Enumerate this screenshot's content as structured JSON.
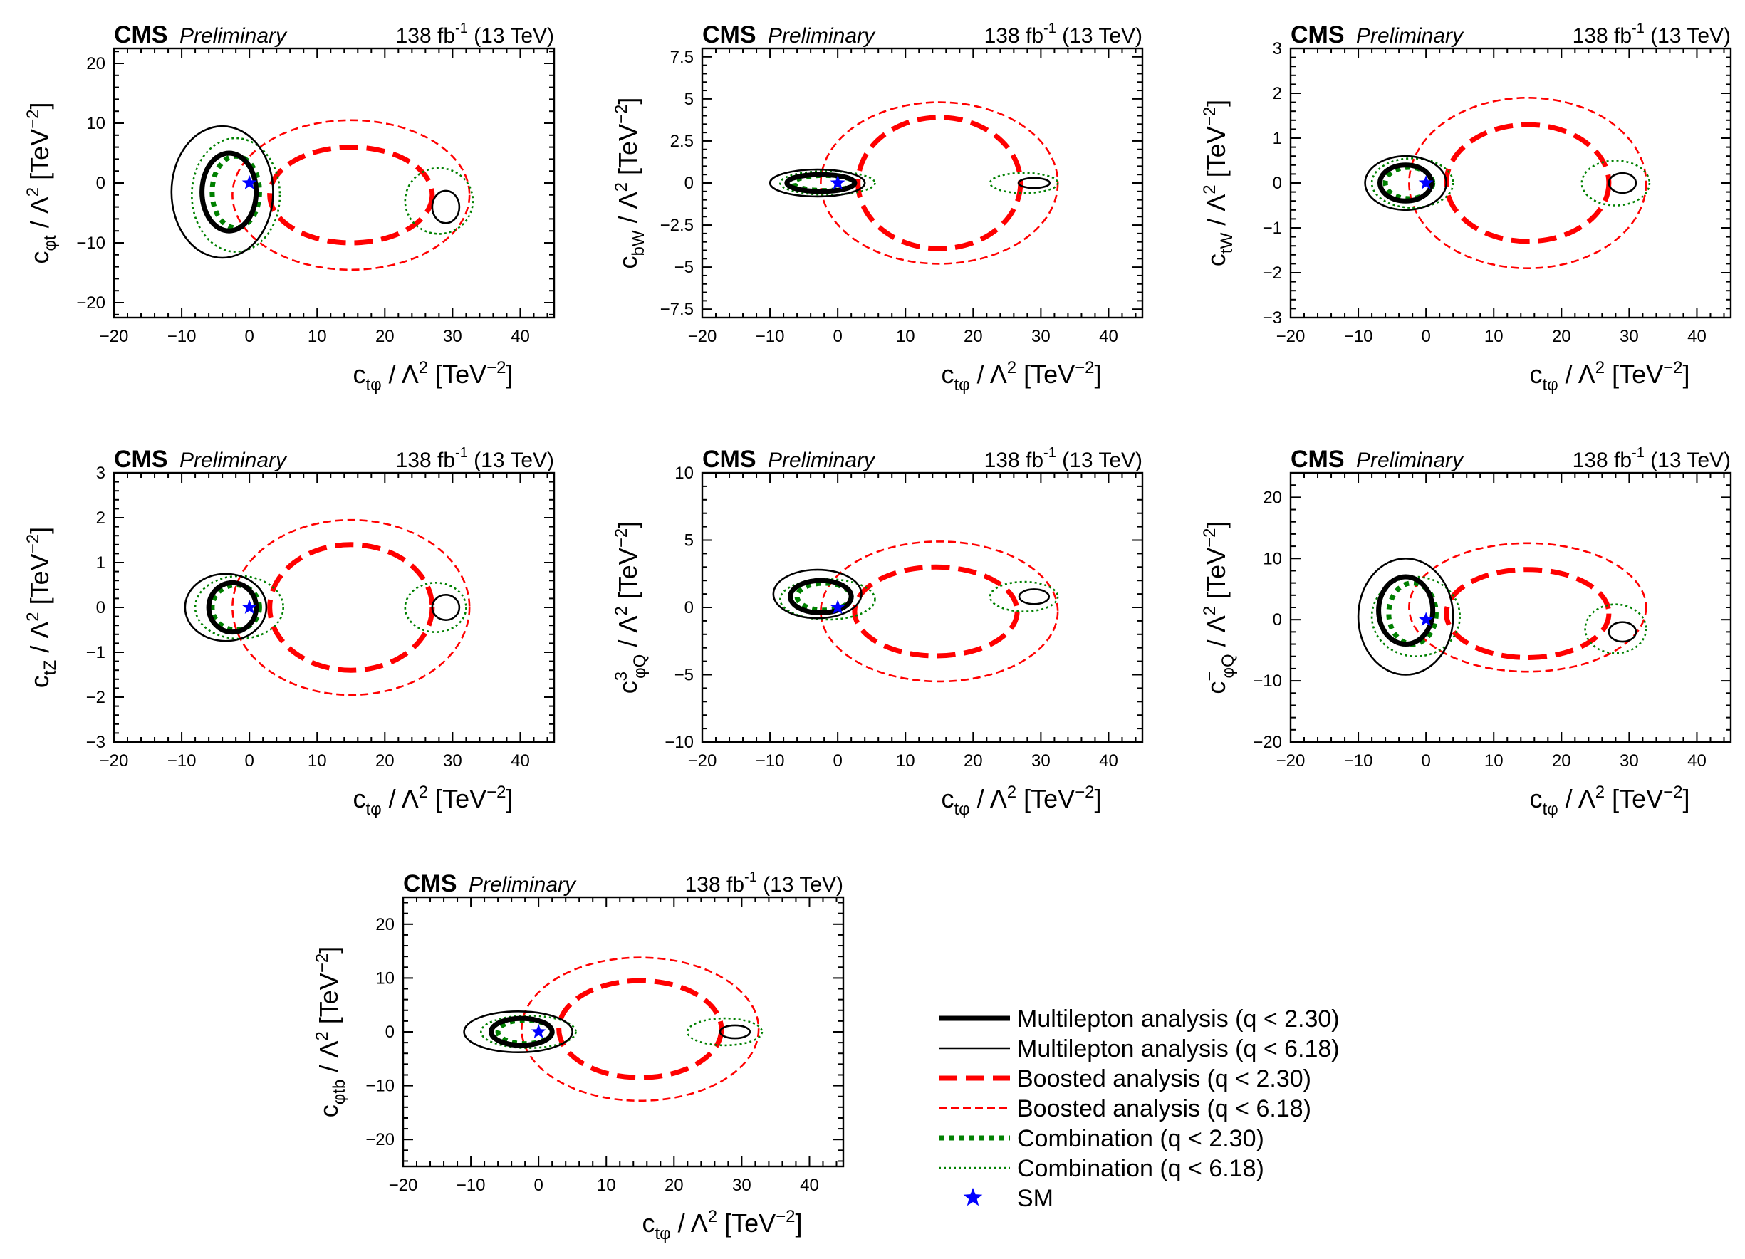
{
  "figure": {
    "experiment": "CMS",
    "status": "Preliminary",
    "lumi_value": "138",
    "lumi_unit": "fb",
    "lumi_exp": "-1",
    "energy": "(13 TeV)",
    "units_tail": " / Λ",
    "units_sq": "2",
    "units_open": " [TeV",
    "units_exp": "−2",
    "units_close": "]"
  },
  "colors": {
    "multilepton": "#000000",
    "boosted": "#ff0000",
    "combination": "#008000",
    "sm": "#0000ff"
  },
  "legend": {
    "entries": [
      {
        "label": "Multilepton analysis (q < 2.30)",
        "style": "ml68"
      },
      {
        "label": "Multilepton analysis (q < 6.18)",
        "style": "ml95"
      },
      {
        "label": "Boosted analysis (q < 2.30)",
        "style": "bo68"
      },
      {
        "label": "Boosted analysis (q < 6.18)",
        "style": "bo95"
      },
      {
        "label": "Combination (q < 2.30)",
        "style": "co68"
      },
      {
        "label": "Combination (q < 6.18)",
        "style": "co95"
      },
      {
        "label": "SM",
        "style": "sm"
      }
    ]
  },
  "chart_data": [
    {
      "type": "contour",
      "xlabel": {
        "base": "c",
        "sub": "tφ"
      },
      "ylabel": {
        "base": "c",
        "sub": "φt",
        "sup": ""
      },
      "xlim": [
        -20,
        45
      ],
      "ylim": [
        -22.5,
        22.5
      ],
      "xticks": [
        -20,
        -10,
        0,
        10,
        20,
        30,
        40
      ],
      "yticks": [
        -20,
        -10,
        0,
        10,
        20
      ],
      "sm_point": [
        0,
        0
      ],
      "contours": {
        "ml68": [
          {
            "cx": -3,
            "cy": -1.5,
            "rx": 4,
            "ry": 6.5
          }
        ],
        "ml95": [
          {
            "cx": -4,
            "cy": -1.5,
            "rx": 7.5,
            "ry": 11
          },
          {
            "cx": 29,
            "cy": -4,
            "rx": 2,
            "ry": 2.7
          }
        ],
        "bo68": [
          {
            "cx": 15,
            "cy": -2,
            "rx": 12,
            "ry": 8
          }
        ],
        "bo95": [
          {
            "cx": 15,
            "cy": -2,
            "rx": 17.5,
            "ry": 12.5
          }
        ],
        "co68": [
          {
            "cx": -2,
            "cy": -1.5,
            "rx": 3.5,
            "ry": 6
          }
        ],
        "co95": [
          {
            "cx": -2,
            "cy": -2,
            "rx": 6.5,
            "ry": 9.5
          },
          {
            "cx": 28,
            "cy": -3,
            "rx": 5,
            "ry": 5.5
          }
        ]
      }
    },
    {
      "type": "contour",
      "xlabel": {
        "base": "c",
        "sub": "tφ"
      },
      "ylabel": {
        "base": "c",
        "sub": "bW",
        "sup": ""
      },
      "xlim": [
        -20,
        45
      ],
      "ylim": [
        -8,
        8
      ],
      "xticks": [
        -20,
        -10,
        0,
        10,
        20,
        30,
        40
      ],
      "yticks": [
        -7.5,
        -5.0,
        -2.5,
        0.0,
        2.5,
        5.0,
        7.5
      ],
      "sm_point": [
        0,
        0
      ],
      "contours": {
        "ml68": [
          {
            "cx": -2.5,
            "cy": 0,
            "rx": 5,
            "ry": 0.5
          }
        ],
        "ml95": [
          {
            "cx": -3,
            "cy": 0,
            "rx": 7,
            "ry": 0.8
          },
          {
            "cx": 29,
            "cy": 0,
            "rx": 2.3,
            "ry": 0.3
          }
        ],
        "bo68": [
          {
            "cx": 15,
            "cy": 0,
            "rx": 12,
            "ry": 3.9
          }
        ],
        "bo95": [
          {
            "cx": 15,
            "cy": 0,
            "rx": 17.5,
            "ry": 4.8
          }
        ],
        "co68": [
          {
            "cx": -2,
            "cy": 0,
            "rx": 4.5,
            "ry": 0.45
          }
        ],
        "co95": [
          {
            "cx": -1.5,
            "cy": 0,
            "rx": 7,
            "ry": 0.7
          },
          {
            "cx": 27.5,
            "cy": 0,
            "rx": 5,
            "ry": 0.6
          }
        ]
      }
    },
    {
      "type": "contour",
      "xlabel": {
        "base": "c",
        "sub": "tφ"
      },
      "ylabel": {
        "base": "c",
        "sub": "tW",
        "sup": ""
      },
      "xlim": [
        -20,
        45
      ],
      "ylim": [
        -3,
        3
      ],
      "xticks": [
        -20,
        -10,
        0,
        10,
        20,
        30,
        40
      ],
      "yticks": [
        -3,
        -2,
        -1,
        0,
        1,
        2,
        3
      ],
      "sm_point": [
        0,
        0
      ],
      "contours": {
        "ml68": [
          {
            "cx": -3,
            "cy": 0,
            "rx": 3.8,
            "ry": 0.4
          }
        ],
        "ml95": [
          {
            "cx": -3,
            "cy": 0,
            "rx": 6,
            "ry": 0.6
          },
          {
            "cx": 29,
            "cy": 0,
            "rx": 2,
            "ry": 0.22
          }
        ],
        "bo68": [
          {
            "cx": 15,
            "cy": 0,
            "rx": 12,
            "ry": 1.3
          }
        ],
        "bo95": [
          {
            "cx": 15,
            "cy": 0,
            "rx": 17.5,
            "ry": 1.9
          }
        ],
        "co68": [
          {
            "cx": -2.5,
            "cy": 0,
            "rx": 3.5,
            "ry": 0.35
          }
        ],
        "co95": [
          {
            "cx": -2,
            "cy": 0,
            "rx": 6,
            "ry": 0.55
          },
          {
            "cx": 28,
            "cy": 0,
            "rx": 5,
            "ry": 0.5
          }
        ]
      }
    },
    {
      "type": "contour",
      "xlabel": {
        "base": "c",
        "sub": "tφ"
      },
      "ylabel": {
        "base": "c",
        "sub": "tZ",
        "sup": ""
      },
      "xlim": [
        -20,
        45
      ],
      "ylim": [
        -3,
        3
      ],
      "xticks": [
        -20,
        -10,
        0,
        10,
        20,
        30,
        40
      ],
      "yticks": [
        -3,
        -2,
        -1,
        0,
        1,
        2,
        3
      ],
      "sm_point": [
        0,
        0
      ],
      "contours": {
        "ml68": [
          {
            "cx": -2.5,
            "cy": 0,
            "rx": 3.5,
            "ry": 0.55
          }
        ],
        "ml95": [
          {
            "cx": -3.5,
            "cy": 0,
            "rx": 6,
            "ry": 0.75
          },
          {
            "cx": 29,
            "cy": 0,
            "rx": 2,
            "ry": 0.28
          }
        ],
        "bo68": [
          {
            "cx": 15,
            "cy": 0,
            "rx": 12,
            "ry": 1.4
          }
        ],
        "bo95": [
          {
            "cx": 15,
            "cy": 0,
            "rx": 17.5,
            "ry": 1.95
          }
        ],
        "co68": [
          {
            "cx": -2,
            "cy": 0,
            "rx": 3.5,
            "ry": 0.5
          }
        ],
        "co95": [
          {
            "cx": -1.5,
            "cy": 0,
            "rx": 6.5,
            "ry": 0.7
          },
          {
            "cx": 27.5,
            "cy": 0,
            "rx": 4.5,
            "ry": 0.55
          }
        ]
      }
    },
    {
      "type": "contour",
      "xlabel": {
        "base": "c",
        "sub": "tφ"
      },
      "ylabel": {
        "base": "c",
        "sub": "φQ",
        "sup": "3"
      },
      "xlim": [
        -20,
        45
      ],
      "ylim": [
        -10,
        10
      ],
      "xticks": [
        -20,
        -10,
        0,
        10,
        20,
        30,
        40
      ],
      "yticks": [
        -10,
        -5,
        0,
        5,
        10
      ],
      "sm_point": [
        0,
        0
      ],
      "contours": {
        "ml68": [
          {
            "cx": -2.5,
            "cy": 0.8,
            "rx": 4.5,
            "ry": 1.2
          }
        ],
        "ml95": [
          {
            "cx": -3,
            "cy": 1,
            "rx": 6.5,
            "ry": 1.8
          },
          {
            "cx": 29,
            "cy": 0.8,
            "rx": 2.2,
            "ry": 0.55
          }
        ],
        "bo68": [
          {
            "cx": 14.5,
            "cy": -0.3,
            "rx": 12,
            "ry": 3.3
          }
        ],
        "bo95": [
          {
            "cx": 15,
            "cy": -0.3,
            "rx": 17.5,
            "ry": 5.2
          }
        ],
        "co68": [
          {
            "cx": -2,
            "cy": 0.8,
            "rx": 4,
            "ry": 1
          }
        ],
        "co95": [
          {
            "cx": -1.5,
            "cy": 0.6,
            "rx": 7,
            "ry": 1.5
          },
          {
            "cx": 27.5,
            "cy": 0.8,
            "rx": 5,
            "ry": 1.1
          }
        ]
      }
    },
    {
      "type": "contour",
      "xlabel": {
        "base": "c",
        "sub": "tφ"
      },
      "ylabel": {
        "base": "c",
        "sub": "φQ",
        "sup": "−"
      },
      "xlim": [
        -20,
        45
      ],
      "ylim": [
        -20,
        24
      ],
      "xticks": [
        -20,
        -10,
        0,
        10,
        20,
        30,
        40
      ],
      "yticks": [
        -20,
        -10,
        0,
        10,
        20
      ],
      "sm_point": [
        0,
        0
      ],
      "contours": {
        "ml68": [
          {
            "cx": -3,
            "cy": 1.5,
            "rx": 4,
            "ry": 5.5
          }
        ],
        "ml95": [
          {
            "cx": -3,
            "cy": 0.5,
            "rx": 7,
            "ry": 9.5
          },
          {
            "cx": 29,
            "cy": -2,
            "rx": 2,
            "ry": 1.6
          }
        ],
        "bo68": [
          {
            "cx": 15,
            "cy": 1,
            "rx": 12,
            "ry": 7.2
          }
        ],
        "bo95": [
          {
            "cx": 15,
            "cy": 2,
            "rx": 17.5,
            "ry": 10.5
          }
        ],
        "co68": [
          {
            "cx": -2,
            "cy": 1,
            "rx": 3.5,
            "ry": 5
          }
        ],
        "co95": [
          {
            "cx": -1.5,
            "cy": 0.5,
            "rx": 6.5,
            "ry": 6.5
          },
          {
            "cx": 28,
            "cy": -1.5,
            "rx": 4.5,
            "ry": 4
          }
        ]
      }
    },
    {
      "type": "contour",
      "xlabel": {
        "base": "c",
        "sub": "tφ"
      },
      "ylabel": {
        "base": "c",
        "sub": "φtb",
        "sup": ""
      },
      "xlim": [
        -20,
        45
      ],
      "ylim": [
        -25,
        25
      ],
      "xticks": [
        -20,
        -10,
        0,
        10,
        20,
        30,
        40
      ],
      "yticks": [
        -20,
        -10,
        0,
        10,
        20
      ],
      "sm_point": [
        0,
        0
      ],
      "contours": {
        "ml68": [
          {
            "cx": -2.5,
            "cy": 0,
            "rx": 4.5,
            "ry": 2.5
          }
        ],
        "ml95": [
          {
            "cx": -3,
            "cy": 0,
            "rx": 8,
            "ry": 3.8
          },
          {
            "cx": 29,
            "cy": 0,
            "rx": 2.2,
            "ry": 1.2
          }
        ],
        "bo68": [
          {
            "cx": 15,
            "cy": 0.5,
            "rx": 12,
            "ry": 9
          }
        ],
        "bo95": [
          {
            "cx": 15,
            "cy": 0.5,
            "rx": 17.5,
            "ry": 13.3
          }
        ],
        "co68": [
          {
            "cx": -2,
            "cy": 0,
            "rx": 4,
            "ry": 2.2
          }
        ],
        "co95": [
          {
            "cx": -1.5,
            "cy": 0,
            "rx": 7,
            "ry": 3
          },
          {
            "cx": 27.5,
            "cy": 0,
            "rx": 5.5,
            "ry": 2.5
          }
        ]
      }
    }
  ]
}
